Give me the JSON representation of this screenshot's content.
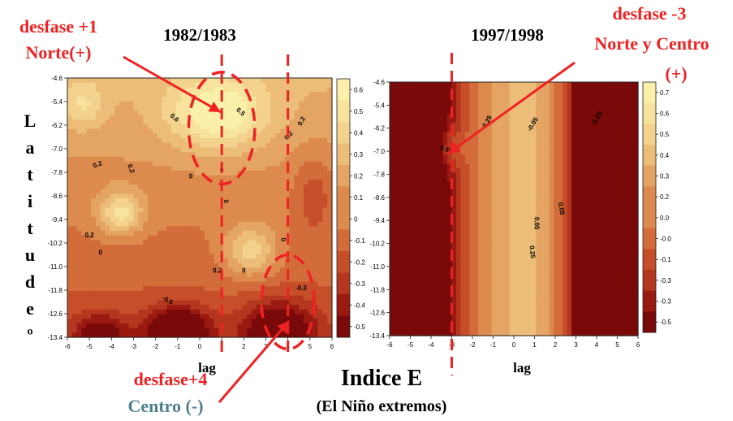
{
  "colors": {
    "annotation_red": "#ee2222",
    "centro_teal": "#4f7f8f",
    "ramp": [
      "#7a0a0a",
      "#9a1a12",
      "#b4361e",
      "#c64e28",
      "#d26c3a",
      "#dc8a4e",
      "#e4a564",
      "#ecbd78",
      "#f2d28c",
      "#f7e39c",
      "#fbf0aa"
    ]
  },
  "page": {
    "title_left": "1982/1983",
    "title_right": "1997/1998",
    "y_axis_label_letters": [
      "L",
      "a",
      "t",
      "i",
      "t",
      "u",
      "d",
      "e",
      "º"
    ],
    "bottom_title": "Indice E",
    "bottom_subtitle": "(El Niño extremos)"
  },
  "annotations": {
    "left_top_line1": "desfase +1",
    "left_top_line2": "Norte(+)",
    "right_top_line1": "desfase -3",
    "right_top_line2": "Norte y Centro",
    "right_top_line3": "(+)",
    "bottom_line1": "desfase+4",
    "bottom_line2": "Centro (-)"
  },
  "chart_data": [
    {
      "type": "heatmap",
      "subtype": "filled-contour",
      "title": "1982/1983",
      "xlabel": "lag",
      "ylabel": "Latitude º",
      "x_ticks": [
        "-6",
        "-5",
        "-4",
        "-3",
        "-2",
        "-1",
        "0",
        "1",
        "2",
        "3",
        "4",
        "5",
        "6"
      ],
      "y_ticks": [
        "-4.6",
        "-5.4",
        "-6.2",
        "-7.0",
        "-7.8",
        "-8.6",
        "-9.4",
        "-10.2",
        "-11.0",
        "-11.8",
        "-12.6",
        "-13.4"
      ],
      "xlim": [
        -6,
        6
      ],
      "ylim": [
        -13.4,
        -4.6
      ],
      "colorbar_ticks": [
        "0.6",
        "0.5",
        "0.4",
        "0.3",
        "0.2",
        "0.1",
        "0",
        "-0.1",
        "-0.2",
        "-0.3",
        "-0.4",
        "-0.5"
      ],
      "colorbar_range": [
        -0.5,
        0.65
      ],
      "contour_labels": [
        "0.6",
        "0.5",
        "0.2",
        "0.2",
        "0.2",
        "0",
        "0",
        "0.2",
        "0",
        "0.2",
        "0",
        "0",
        "0",
        "-0.3",
        "-0.5",
        "0.2"
      ],
      "blobs": [
        {
          "x": 0.8,
          "y": -5.8,
          "sx": 2.2,
          "sy": 1.2,
          "a": 0.5
        },
        {
          "x": 2.3,
          "y": -10.5,
          "sx": 1.2,
          "sy": 0.9,
          "a": 0.4
        },
        {
          "x": -3.6,
          "y": -9.2,
          "sx": 1.0,
          "sy": 0.7,
          "a": 0.45
        },
        {
          "x": -5.3,
          "y": -5.5,
          "sx": 1.0,
          "sy": 0.8,
          "a": 0.25
        },
        {
          "x": -1.0,
          "y": -13.2,
          "sx": 1.4,
          "sy": 0.8,
          "a": -0.65
        },
        {
          "x": 3.6,
          "y": -13.2,
          "sx": 1.6,
          "sy": 1.0,
          "a": -0.55
        },
        {
          "x": -4.5,
          "y": -13.3,
          "sx": 1.2,
          "sy": 0.7,
          "a": -0.4
        },
        {
          "x": 5.2,
          "y": -8.5,
          "sx": 0.9,
          "sy": 1.4,
          "a": -0.2
        }
      ],
      "base": {
        "c": 0.05,
        "ky": 0.045,
        "y0": -9.0,
        "kx": 0.0
      },
      "markers": {
        "vertical_dashed_lag": [
          1,
          4
        ],
        "dashed_ellipses": [
          {
            "x": 1.0,
            "y": -6.3,
            "rx": 1.5,
            "ry": 1.9
          },
          {
            "x": 4.0,
            "y": -12.2,
            "rx": 1.2,
            "ry": 1.6
          }
        ]
      }
    },
    {
      "type": "heatmap",
      "subtype": "filled-contour",
      "title": "1997/1998",
      "xlabel": "lag",
      "x_ticks": [
        "-6",
        "-5",
        "-4",
        "-3",
        "-2",
        "-1",
        "0",
        "1",
        "2",
        "3",
        "4",
        "5",
        "6"
      ],
      "y_ticks": [
        "-4.6",
        "-5.4",
        "-6.2",
        "-7.0",
        "-7.8",
        "-8.6",
        "-9.4",
        "-10.2",
        "-11.0",
        "-11.8",
        "-12.6",
        "-13.4"
      ],
      "xlim": [
        -6,
        6
      ],
      "ylim": [
        -13.4,
        -4.6
      ],
      "colorbar_ticks": [
        "0.7",
        "0.6",
        "0.5",
        "0.4",
        "0.3",
        "0.2",
        "0.0",
        "-0.0",
        "-0.1",
        "-0.3",
        "-0.3",
        "-0.5"
      ],
      "colorbar_range": [
        -0.55,
        0.75
      ],
      "contour_labels": [
        "0.55",
        "0.25",
        "-0.05",
        "-0.25",
        "0.05",
        "0.05",
        "0.25"
      ],
      "blobs": [
        {
          "x": -3.2,
          "y": -6.9,
          "sx": 0.9,
          "sy": 0.7,
          "a": 0.25
        },
        {
          "x": -2.5,
          "y": -11.7,
          "sx": 0.35,
          "sy": 0.25,
          "a": 0.05
        },
        {
          "x": 5.0,
          "y": -5.5,
          "sx": 0.9,
          "sy": 0.9,
          "a": -0.25
        }
      ],
      "base": {
        "c": 0.3,
        "ky": 0.0,
        "y0": -9.0,
        "kx": 0.12,
        "xc": 0.6,
        "p": 2.2
      },
      "markers": {
        "vertical_dashed_lag": [
          -3
        ]
      }
    }
  ]
}
